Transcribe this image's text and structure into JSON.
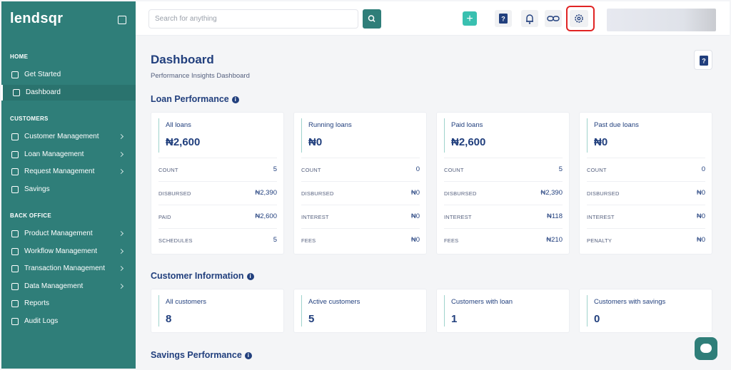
{
  "sidebar": {
    "logo": "lendsqr",
    "sections": [
      {
        "title": "HOME",
        "items": [
          "Get Started",
          "Dashboard"
        ]
      },
      {
        "title": "CUSTOMERS",
        "items": [
          "Customer Management",
          "Loan Management",
          "Request Management",
          "Savings"
        ]
      },
      {
        "title": "BACK OFFICE",
        "items": [
          "Product Management",
          "Workflow Management",
          "Transaction Management",
          "Data Management",
          "Reports",
          "Audit Logs"
        ]
      }
    ]
  },
  "topbar": {
    "search_placeholder": "Search for anything"
  },
  "page": {
    "title": "Dashboard",
    "subtitle": "Performance Insights Dashboard"
  },
  "loan_performance": {
    "title": "Loan Performance",
    "cards": [
      {
        "label": "All loans",
        "value": "₦2,600",
        "rows": [
          [
            "COUNT",
            "5"
          ],
          [
            "DISBURSED",
            "₦2,390"
          ],
          [
            "PAID",
            "₦2,600"
          ],
          [
            "SCHEDULES",
            "5"
          ]
        ]
      },
      {
        "label": "Running loans",
        "value": "₦0",
        "rows": [
          [
            "COUNT",
            "0"
          ],
          [
            "DISBURSED",
            "₦0"
          ],
          [
            "INTEREST",
            "₦0"
          ],
          [
            "FEES",
            "₦0"
          ]
        ]
      },
      {
        "label": "Paid loans",
        "value": "₦2,600",
        "rows": [
          [
            "COUNT",
            "5"
          ],
          [
            "DISBURSED",
            "₦2,390"
          ],
          [
            "INTEREST",
            "₦118"
          ],
          [
            "FEES",
            "₦210"
          ]
        ]
      },
      {
        "label": "Past due loans",
        "value": "₦0",
        "rows": [
          [
            "COUNT",
            "0"
          ],
          [
            "DISBURSED",
            "₦0"
          ],
          [
            "INTEREST",
            "₦0"
          ],
          [
            "PENALTY",
            "₦0"
          ]
        ]
      }
    ]
  },
  "customer_information": {
    "title": "Customer Information",
    "cards": [
      {
        "label": "All customers",
        "value": "8"
      },
      {
        "label": "Active customers",
        "value": "5"
      },
      {
        "label": "Customers with loan",
        "value": "1"
      },
      {
        "label": "Customers with savings",
        "value": "0"
      }
    ]
  },
  "savings_performance": {
    "title": "Savings Performance"
  }
}
